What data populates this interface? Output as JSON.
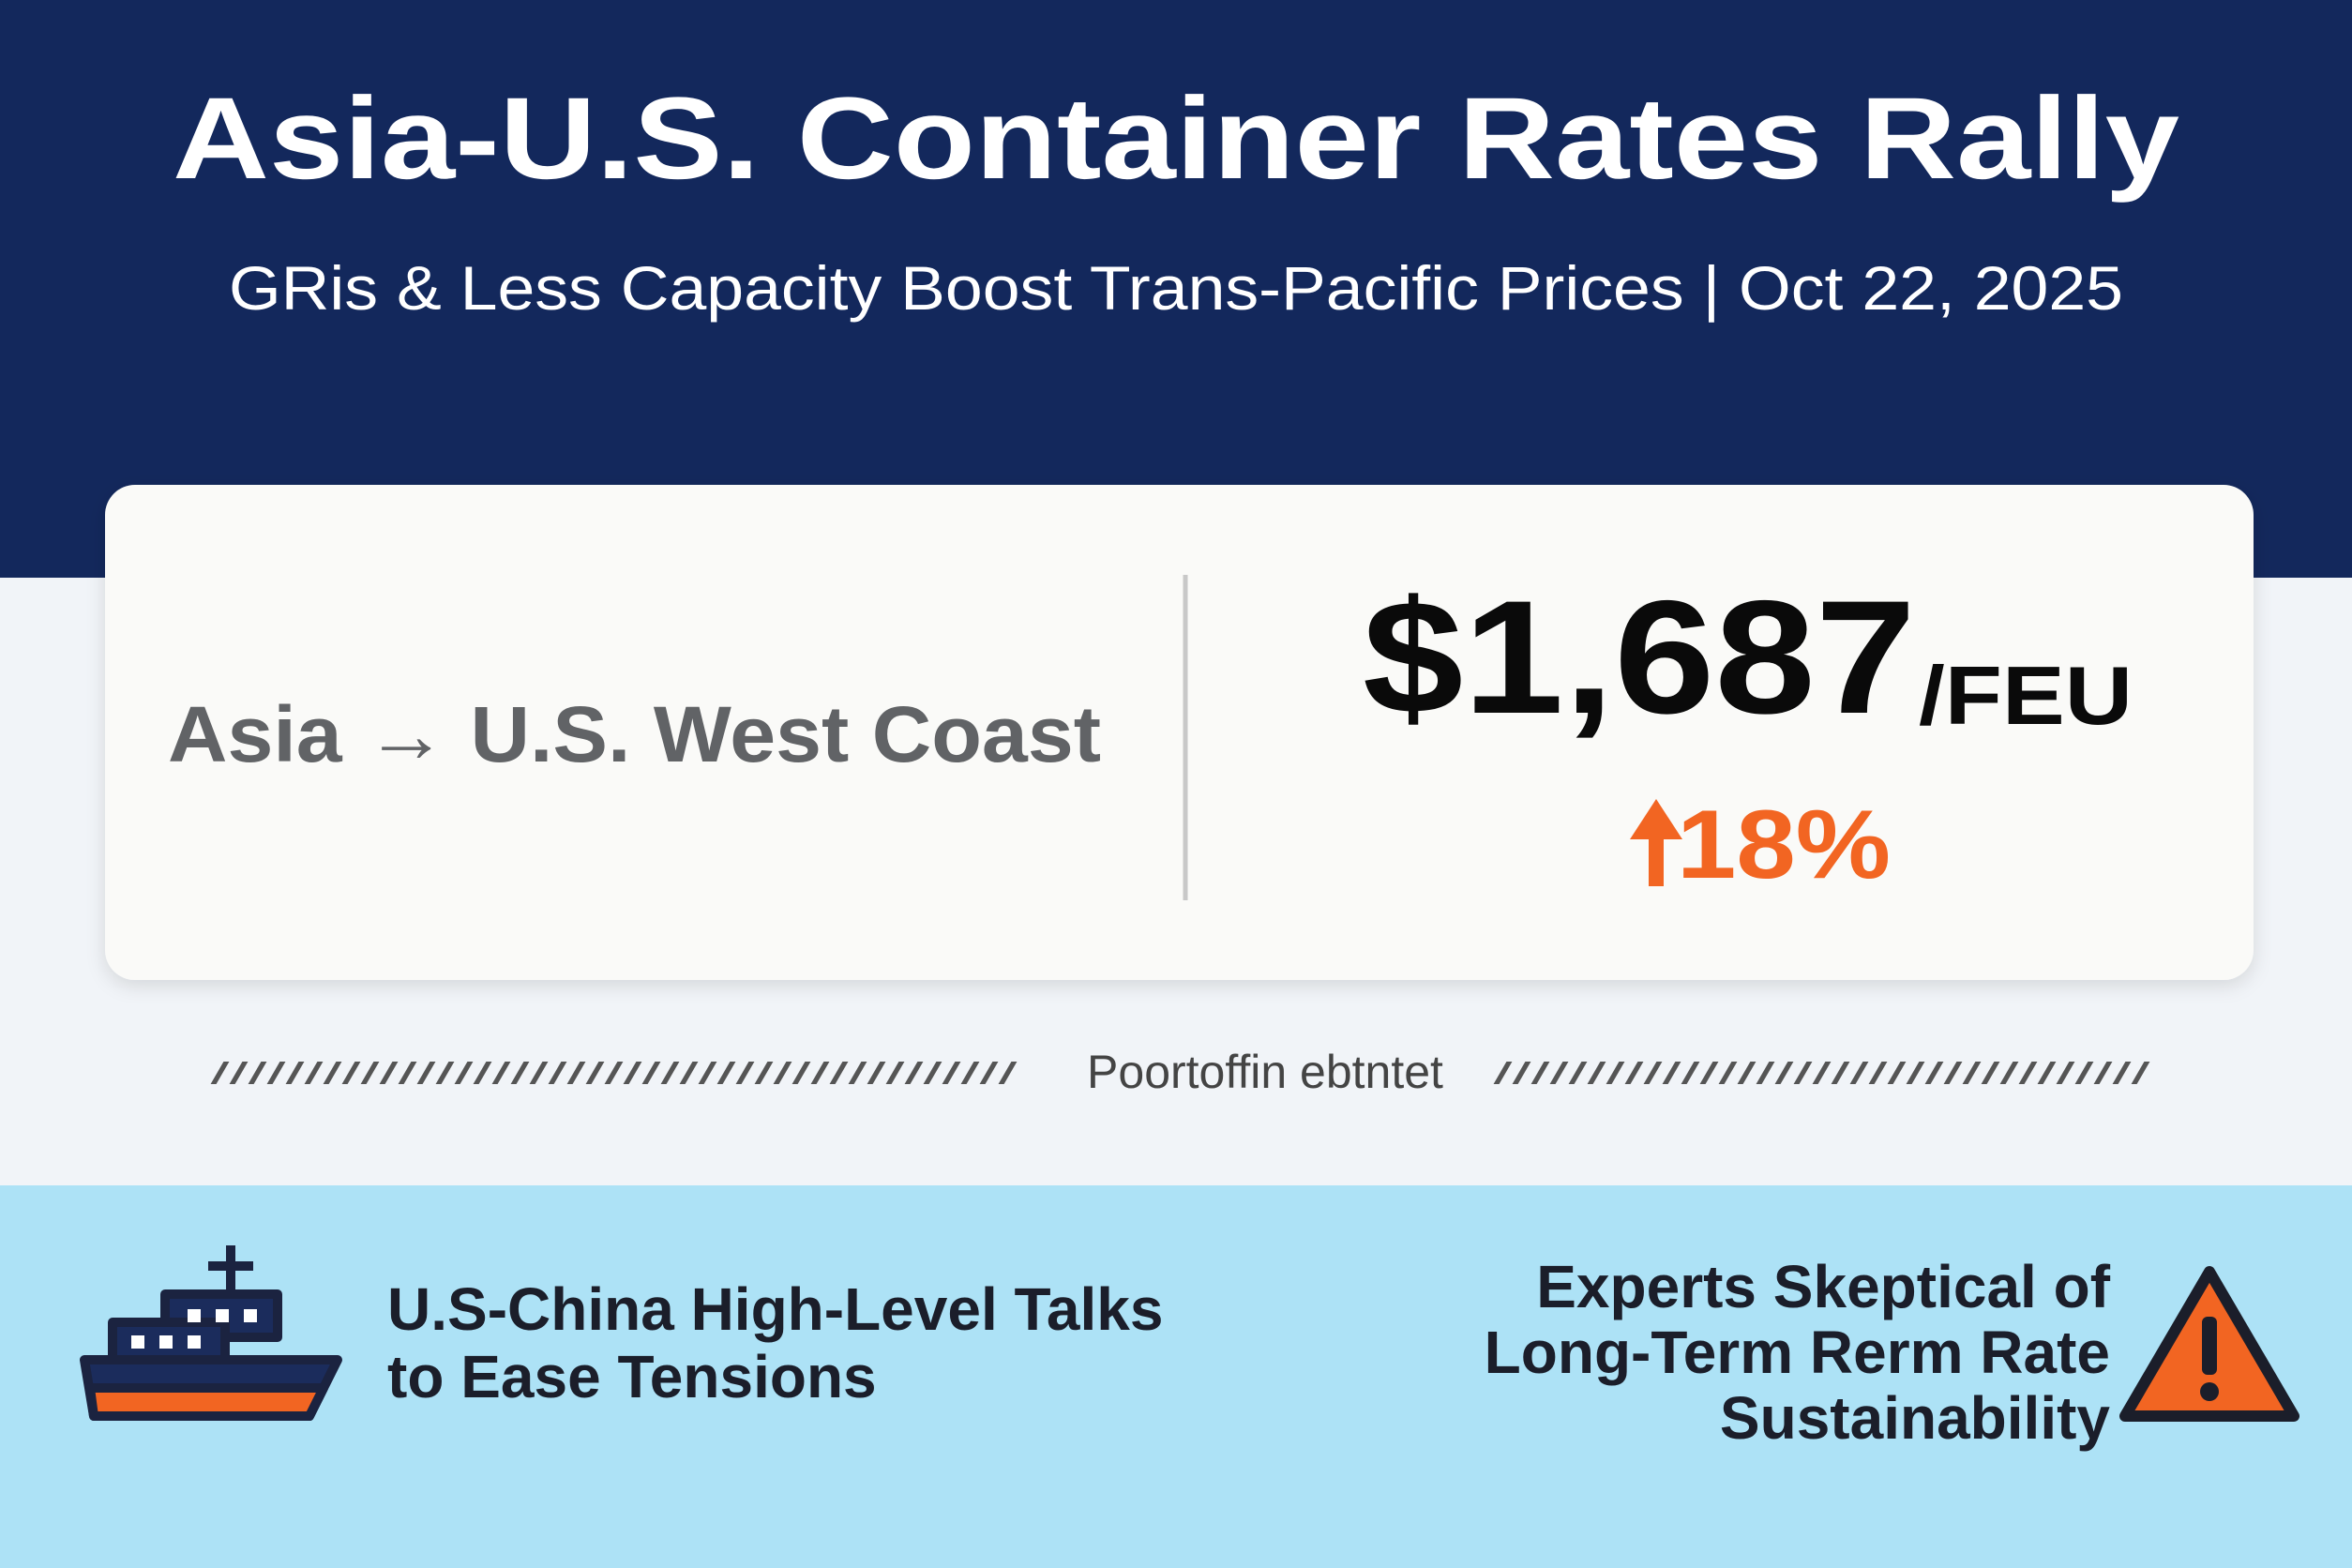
{
  "header": {
    "title": "Asia-U.S. Container Rates Rally",
    "subtitle": "GRis & Less Capacity Boost Trans-Pacific Prices | Oct 22, 2025"
  },
  "rate_card": {
    "route": "Asia → U.S. West Coast",
    "price": "$1,687",
    "unit": "/FEU",
    "change": "18%"
  },
  "divider": {
    "label": "Poortoffin ebtntet"
  },
  "footer": {
    "left": [
      "U.S-China High-Level Talks",
      "to Ease Tensions"
    ],
    "right": [
      "Experts Skeptical of",
      "Long-Term Rerm Rate",
      "Sustainability"
    ]
  }
}
